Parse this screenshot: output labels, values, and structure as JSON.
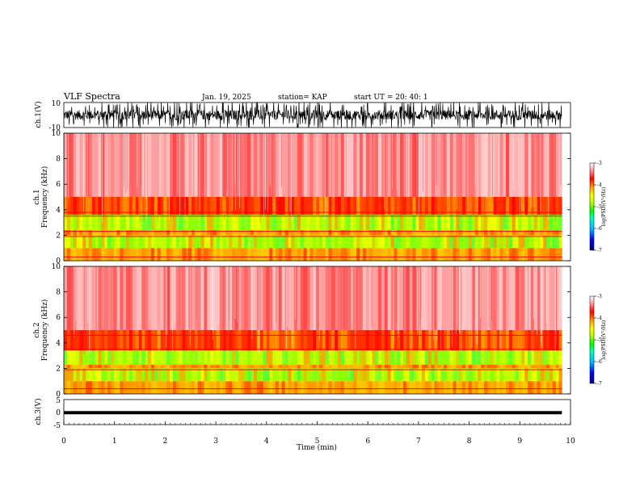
{
  "header": {
    "title": "VLF Spectra",
    "date": "Jan. 19, 2025",
    "station": "station= KAP",
    "start": "start  UT  =   20: 40: 1"
  },
  "colors": {
    "background": "#ffffff",
    "trace": "#000000",
    "colormap": [
      "#000080",
      "#0000ff",
      "#00bfff",
      "#00ffbf",
      "#00ff00",
      "#bfff00",
      "#ffff00",
      "#ffa000",
      "#ff2000",
      "#ff0000",
      "#ffd0d0",
      "#ffffff"
    ]
  },
  "chart_data": [
    {
      "type": "line",
      "name": "ch1-waveform",
      "ylabel": "ch.1(V)",
      "ylim": [
        -10,
        10
      ],
      "yticks": [
        "10",
        "-10"
      ],
      "xlim": [
        0,
        10
      ],
      "description_band": [
        -4,
        4
      ]
    },
    {
      "type": "heatmap",
      "name": "ch1-spectrogram",
      "ylabel_1": "ch.1",
      "ylabel_2": "Frequency (kHz)",
      "ylim": [
        0,
        10
      ],
      "yticks": [
        "0",
        "2",
        "4",
        "6",
        "8",
        "10"
      ],
      "xlim": [
        0,
        10
      ],
      "colorbar": {
        "label": "log(PSD)(V²/Hz)",
        "range": [
          -7,
          -3
        ],
        "ticks": [
          "-3",
          "-4",
          "-5",
          "-6",
          "-7"
        ]
      },
      "bands_khz": [
        {
          "from": 0,
          "to": 1.0,
          "level": "orange"
        },
        {
          "from": 1.0,
          "to": 2.0,
          "level": "green"
        },
        {
          "from": 2.0,
          "to": 2.4,
          "level": "orange"
        },
        {
          "from": 2.4,
          "to": 3.6,
          "level": "green"
        },
        {
          "from": 3.6,
          "to": 5.0,
          "level": "red"
        },
        {
          "from": 5.0,
          "to": 10.0,
          "level": "light-red"
        }
      ],
      "lines_khz": [
        0.3,
        1.9,
        2.3,
        3.5,
        3.8
      ]
    },
    {
      "type": "heatmap",
      "name": "ch2-spectrogram",
      "ylabel_1": "ch.2",
      "ylabel_2": "Frequency (kHz)",
      "ylim": [
        0,
        10
      ],
      "yticks": [
        "0",
        "2",
        "4",
        "6",
        "8",
        "10"
      ],
      "xlim": [
        0,
        10
      ],
      "colorbar": {
        "label": "log(PSD)(V²/Hz)",
        "range": [
          -7,
          -3
        ],
        "ticks": [
          "-3",
          "-4",
          "-5",
          "-6",
          "-7"
        ]
      },
      "bands_khz": [
        {
          "from": 0,
          "to": 1.0,
          "level": "orange"
        },
        {
          "from": 1.0,
          "to": 2.0,
          "level": "green"
        },
        {
          "from": 2.0,
          "to": 2.3,
          "level": "orange"
        },
        {
          "from": 2.3,
          "to": 3.4,
          "level": "green"
        },
        {
          "from": 3.4,
          "to": 5.0,
          "level": "red"
        },
        {
          "from": 5.0,
          "to": 10.0,
          "level": "light-red"
        }
      ],
      "lines_khz": [
        0.4,
        1.9,
        3.5,
        4.6
      ]
    },
    {
      "type": "line",
      "name": "ch3-waveform",
      "ylabel": "ch.3(V)",
      "ylim": [
        -5,
        5
      ],
      "yticks": [
        "5",
        "0",
        "-5"
      ],
      "xlim": [
        0,
        10
      ],
      "xlabel": "Time (min)",
      "xticks": [
        "0",
        "1",
        "2",
        "3",
        "4",
        "5",
        "6",
        "7",
        "8",
        "9",
        "10"
      ],
      "description_band": [
        -0.4,
        0.4
      ]
    }
  ]
}
